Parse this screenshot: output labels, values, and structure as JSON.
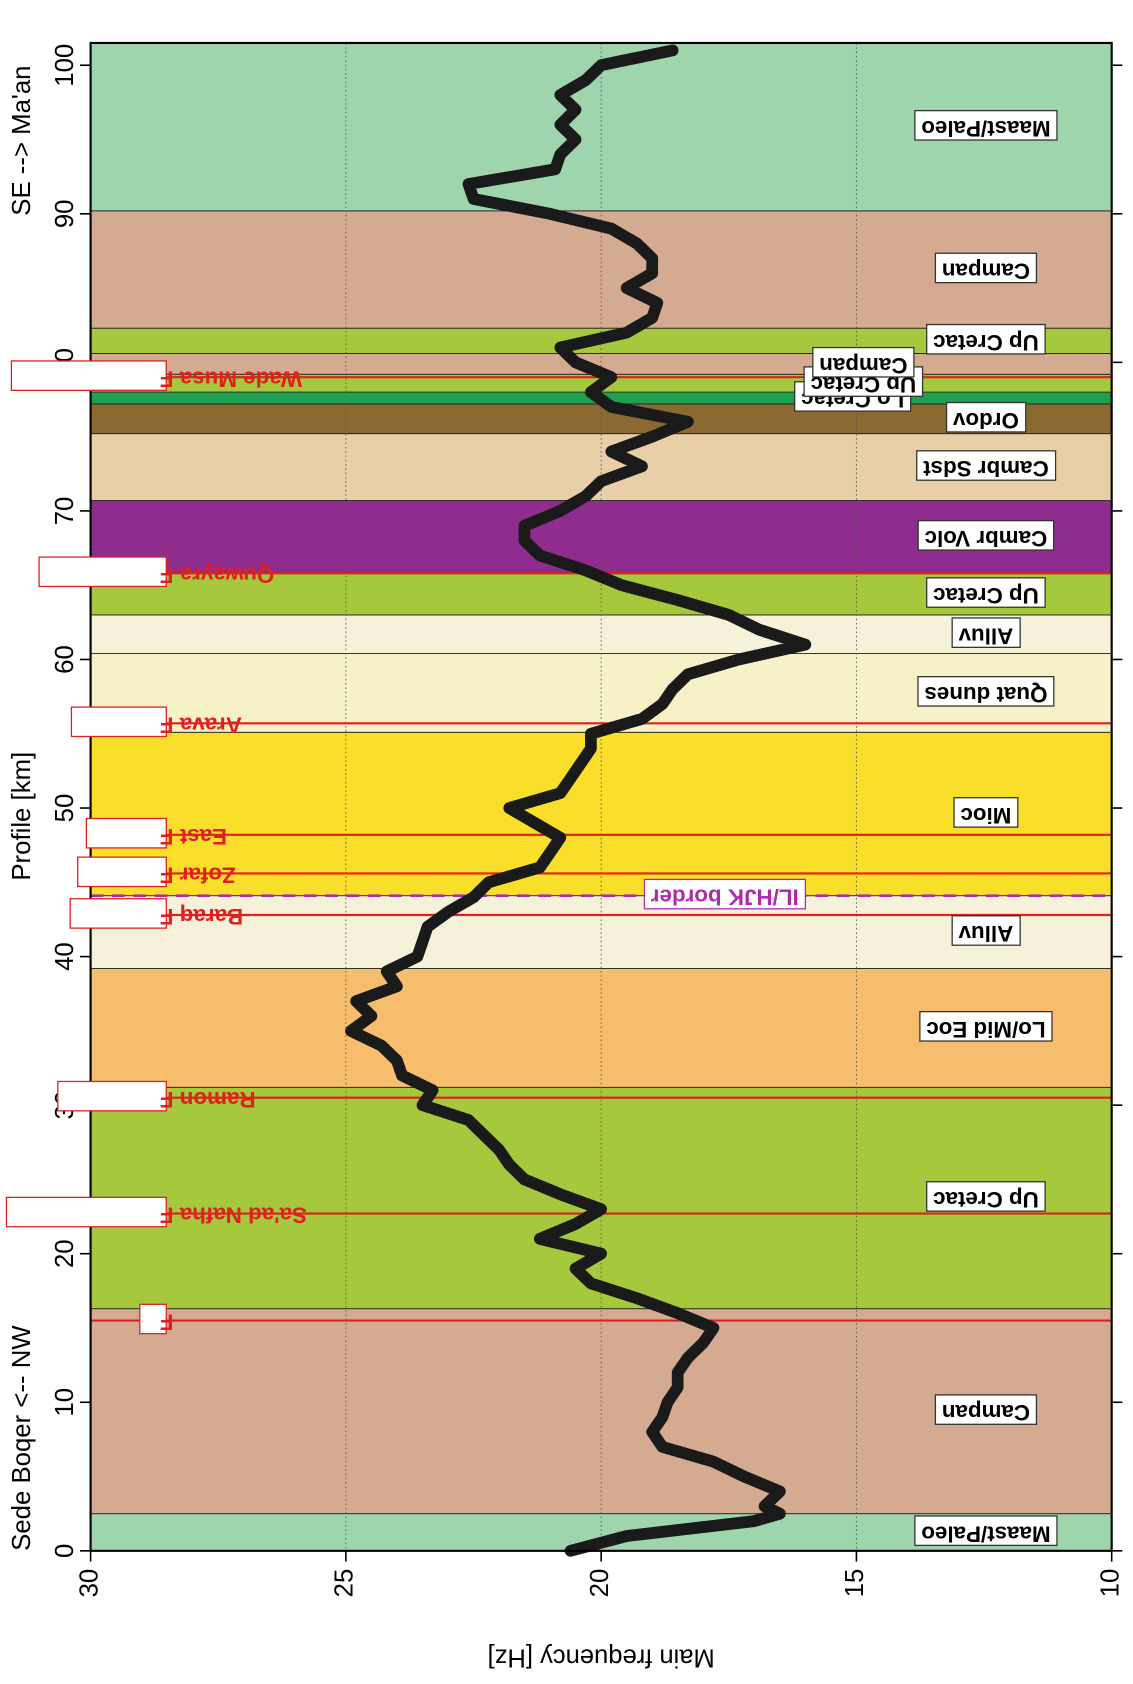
{
  "chart_data": {
    "type": "line",
    "x_label": "Profile [km]",
    "y_label": "Main frequency [Hz]",
    "start_label": "Sede Boqer <-- NW",
    "end_label": "SE --> Ma'an",
    "xlim": [
      0,
      101.5
    ],
    "xticks": [
      0,
      10,
      20,
      30,
      40,
      50,
      60,
      70,
      80,
      90,
      100
    ],
    "ylim": [
      30,
      10
    ],
    "yticks": [
      30,
      25,
      20,
      15,
      10
    ],
    "grid": true,
    "x": [
      0,
      1,
      2,
      2.5,
      3,
      4,
      5,
      6,
      7,
      8,
      9,
      10,
      11,
      12,
      13,
      14,
      15,
      16,
      17,
      18,
      19,
      20,
      21,
      22,
      23,
      24,
      25,
      26,
      27,
      28,
      29,
      30,
      31,
      32,
      33,
      34,
      35,
      36,
      37,
      38,
      39,
      40,
      41,
      42,
      43,
      44,
      45,
      46,
      47,
      48,
      49,
      50,
      51,
      52,
      53,
      54,
      55,
      56,
      57,
      58,
      59,
      60,
      61,
      62,
      63,
      64,
      65,
      66,
      67,
      68,
      69,
      70,
      71,
      72,
      73,
      74,
      75,
      76,
      77,
      78,
      79,
      80,
      81,
      82,
      83,
      84,
      85,
      86,
      87,
      88,
      89,
      90,
      91,
      92,
      93,
      94,
      95,
      96,
      97,
      98,
      99,
      100,
      101
    ],
    "series": [
      {
        "name": "Main frequency",
        "color": "#1a1a1a",
        "values": [
          20.6,
          19.5,
          17,
          16.5,
          16.8,
          16.5,
          17.2,
          17.8,
          18.8,
          19,
          18.8,
          18.7,
          18.5,
          18.5,
          18.3,
          18,
          17.8,
          18.5,
          19.3,
          20.2,
          20.5,
          20,
          21.2,
          20.5,
          20,
          20.8,
          21.5,
          21.8,
          22,
          22.3,
          22.6,
          23.5,
          23.3,
          23.9,
          24,
          24.3,
          24.9,
          24.5,
          24.8,
          24,
          24.2,
          23.6,
          23.5,
          23.4,
          23,
          22.5,
          22.2,
          21.2,
          21,
          20.8,
          21.3,
          21.8,
          20.8,
          20.6,
          20.4,
          20.2,
          20.2,
          19.2,
          18.8,
          18.6,
          18.3,
          17.3,
          16,
          16.9,
          17.5,
          18.5,
          19.6,
          20.3,
          21.2,
          21.5,
          21.5,
          20.8,
          20.3,
          20,
          19.2,
          19.8,
          19,
          18.3,
          19.8,
          20.2,
          19.8,
          20.5,
          20.8,
          19.5,
          19,
          18.9,
          19.5,
          19,
          19,
          19.3,
          19.8,
          21,
          22.5,
          22.6,
          20.9,
          20.8,
          20.5,
          20.8,
          20.5,
          20.8,
          20.3,
          20,
          18.6
        ]
      }
    ],
    "units": [
      {
        "name": "Maast/Paleo",
        "from": 0,
        "to": 2.5,
        "color": "#9fd5ad"
      },
      {
        "name": "Campan",
        "from": 2.5,
        "to": 16.3,
        "color": "#d4aa90"
      },
      {
        "name": "Up Cretac",
        "from": 16.3,
        "to": 31.2,
        "color": "#a5c83d"
      },
      {
        "name": "Lo/Mid Eoc",
        "from": 31.2,
        "to": 39.2,
        "color": "#f5bd6c"
      },
      {
        "name": "Alluv",
        "from": 39.2,
        "to": 44.1,
        "color": "#f6f2da"
      },
      {
        "name": "Mioc",
        "from": 44.1,
        "to": 55.1,
        "color": "#f9df2a"
      },
      {
        "name": "Quat dunes",
        "from": 55.1,
        "to": 60.4,
        "color": "#f6f1c6"
      },
      {
        "name": "Alluv",
        "from": 60.4,
        "to": 63.0,
        "color": "#f6f2da"
      },
      {
        "name": "Up Cretac",
        "from": 63.0,
        "to": 65.8,
        "color": "#a5c83d"
      },
      {
        "name": "Cambr Volc",
        "from": 65.8,
        "to": 70.7,
        "color": "#8e2d8e"
      },
      {
        "name": "Cambr Sdst",
        "from": 70.7,
        "to": 75.2,
        "color": "#e8cfa8"
      },
      {
        "name": "Ordov",
        "from": 75.2,
        "to": 77.2,
        "color": "#8a6a30"
      },
      {
        "name": "Lo Cretac",
        "from": 77.2,
        "to": 78.0,
        "color": "#1fa050"
      },
      {
        "name": "Up Cretac",
        "from": 78.0,
        "to": 79.2,
        "color": "#a5c83d"
      },
      {
        "name": "Campan",
        "from": 79.2,
        "to": 80.6,
        "color": "#d4aa90"
      },
      {
        "name": "Up Cretac",
        "from": 80.6,
        "to": 82.3,
        "color": "#a5c83d"
      },
      {
        "name": "Campan",
        "from": 82.3,
        "to": 90.2,
        "color": "#d4aa90"
      },
      {
        "name": "Maast/Paleo",
        "from": 90.2,
        "to": 101.5,
        "color": "#9fd5ad"
      }
    ],
    "faults": [
      {
        "name": "F",
        "at": 15.5
      },
      {
        "name": "Sa'ad Nafha F",
        "at": 22.7
      },
      {
        "name": "Ramon F",
        "at": 30.5
      },
      {
        "name": "Baraq F",
        "at": 42.8
      },
      {
        "name": "Zofar F",
        "at": 45.6
      },
      {
        "name": "East F",
        "at": 48.2
      },
      {
        "name": "Arava F",
        "at": 55.7
      },
      {
        "name": "Quwayra F",
        "at": 65.8
      },
      {
        "name": "Wade Musa F",
        "at": 79.0
      }
    ],
    "fault_color": "#e02020",
    "border": {
      "name": "IL/HJK border",
      "at": 44.1,
      "color": "#b02ab0"
    }
  }
}
